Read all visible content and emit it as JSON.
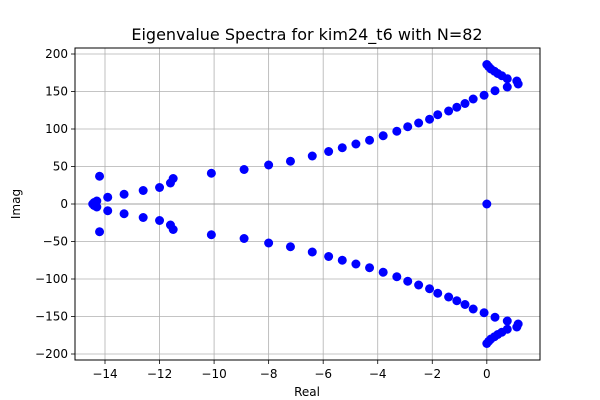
{
  "chart_data": {
    "type": "scatter",
    "title": "Eigenvalue Spectra for kim24_t6 with N=82",
    "xlabel": "Real",
    "ylabel": "Imag",
    "xlim": [
      -15.1,
      1.95
    ],
    "ylim": [
      -208,
      208
    ],
    "xticks": [
      -14,
      -12,
      -10,
      -8,
      -6,
      -4,
      -2,
      0
    ],
    "yticks": [
      -200,
      -150,
      -100,
      -50,
      0,
      50,
      100,
      150,
      200
    ],
    "grid": true,
    "zero_lines": true,
    "marker_color": "#0000ff",
    "series": [
      {
        "points": [
          [
            0.0,
            0.0
          ],
          [
            -14.45,
            0.0
          ],
          [
            -14.4,
            2.0
          ],
          [
            -14.4,
            -2.0
          ],
          [
            -14.3,
            4.0
          ],
          [
            -14.3,
            -4.0
          ],
          [
            -14.2,
            37.0
          ],
          [
            -14.2,
            -37.0
          ],
          [
            -13.9,
            9.0
          ],
          [
            -13.9,
            -9.0
          ],
          [
            -13.3,
            13.0
          ],
          [
            -13.3,
            -13.0
          ],
          [
            -12.6,
            18.0
          ],
          [
            -12.6,
            -18.0
          ],
          [
            -12.0,
            22.0
          ],
          [
            -12.0,
            -22.0
          ],
          [
            -11.6,
            28.0
          ],
          [
            -11.6,
            -28.0
          ],
          [
            -11.5,
            34.0
          ],
          [
            -11.5,
            -34.0
          ],
          [
            -10.1,
            41.0
          ],
          [
            -10.1,
            -41.0
          ],
          [
            -8.9,
            46.0
          ],
          [
            -8.9,
            -46.0
          ],
          [
            -8.0,
            52.0
          ],
          [
            -8.0,
            -52.0
          ],
          [
            -7.2,
            57.0
          ],
          [
            -7.2,
            -57.0
          ],
          [
            -6.4,
            64.0
          ],
          [
            -6.4,
            -64.0
          ],
          [
            -5.8,
            70.0
          ],
          [
            -5.8,
            -70.0
          ],
          [
            -5.3,
            75.0
          ],
          [
            -5.3,
            -75.0
          ],
          [
            -4.8,
            80.0
          ],
          [
            -4.8,
            -80.0
          ],
          [
            -4.3,
            85.0
          ],
          [
            -4.3,
            -85.0
          ],
          [
            -3.8,
            91.0
          ],
          [
            -3.8,
            -91.0
          ],
          [
            -3.3,
            97.0
          ],
          [
            -3.3,
            -97.0
          ],
          [
            -2.9,
            103.0
          ],
          [
            -2.9,
            -103.0
          ],
          [
            -2.5,
            108.0
          ],
          [
            -2.5,
            -108.0
          ],
          [
            -2.1,
            113.0
          ],
          [
            -2.1,
            -113.0
          ],
          [
            -1.8,
            119.0
          ],
          [
            -1.8,
            -119.0
          ],
          [
            -1.4,
            124.0
          ],
          [
            -1.4,
            -124.0
          ],
          [
            -1.1,
            129.0
          ],
          [
            -1.1,
            -129.0
          ],
          [
            -0.8,
            134.0
          ],
          [
            -0.8,
            -134.0
          ],
          [
            -0.5,
            140.0
          ],
          [
            -0.5,
            -140.0
          ],
          [
            -0.1,
            145.0
          ],
          [
            -0.1,
            -145.0
          ],
          [
            0.3,
            151.0
          ],
          [
            0.3,
            -151.0
          ],
          [
            0.75,
            156.0
          ],
          [
            0.75,
            -156.0
          ],
          [
            1.15,
            160.0
          ],
          [
            1.15,
            -160.0
          ],
          [
            1.1,
            164.0
          ],
          [
            1.1,
            -164.0
          ],
          [
            0.75,
            167.0
          ],
          [
            0.75,
            -167.0
          ],
          [
            0.55,
            171.0
          ],
          [
            0.55,
            -171.0
          ],
          [
            0.4,
            174.0
          ],
          [
            0.4,
            -174.0
          ],
          [
            0.28,
            177.0
          ],
          [
            0.28,
            -177.0
          ],
          [
            0.15,
            180.0
          ],
          [
            0.15,
            -180.0
          ],
          [
            0.07,
            183.0
          ],
          [
            0.07,
            -183.0
          ],
          [
            0.0,
            186.0
          ],
          [
            0.0,
            -186.0
          ]
        ]
      }
    ]
  }
}
